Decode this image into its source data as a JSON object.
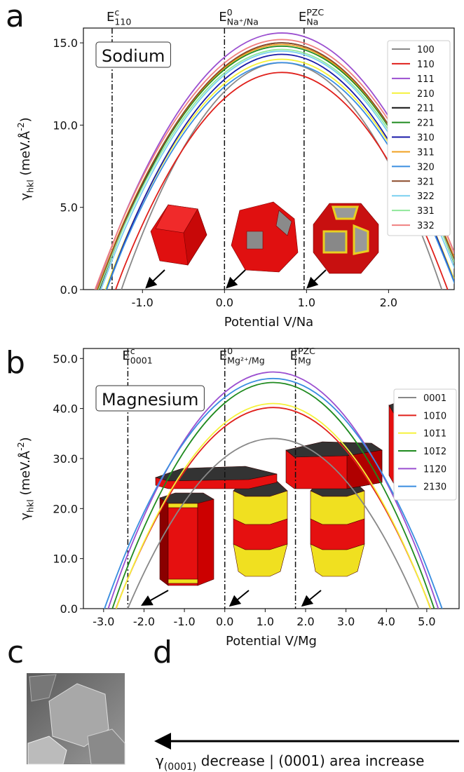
{
  "chart_data": [
    {
      "type": "line",
      "title": "Sodium",
      "xlabel": "Potential V/Na",
      "ylabel": [
        {
          "t": "γ"
        },
        {
          "sub": "hkl"
        },
        {
          "t": " (meV.Å"
        },
        {
          "sup": "-2"
        },
        {
          "t": ")"
        }
      ],
      "xlim": [
        -1.72,
        2.8
      ],
      "ylim": [
        0,
        15.9
      ],
      "xticks": [
        {
          "value": -1,
          "label": "-1.0"
        },
        {
          "value": 0,
          "label": "0.0"
        },
        {
          "value": 1,
          "label": "1.0"
        },
        {
          "value": 2,
          "label": "2.0"
        }
      ],
      "yticks": [
        {
          "value": 0,
          "label": "0.0"
        },
        {
          "value": 5,
          "label": "5.0"
        },
        {
          "value": 10,
          "label": "10.0"
        },
        {
          "value": 15,
          "label": "15.0"
        }
      ],
      "grid": false,
      "legend": "upper right",
      "vlines": [
        {
          "value": -1.37,
          "label": [
            {
              "t": "E"
            },
            {
              "sup": "c"
            },
            {
              "sub": "110"
            }
          ]
        },
        {
          "value": 0,
          "label": [
            {
              "t": "E"
            },
            {
              "sup": "0"
            },
            {
              "sub": "Na⁺/Na"
            }
          ]
        },
        {
          "value": 0.97,
          "label": [
            {
              "t": "E"
            },
            {
              "sup": "PZC"
            },
            {
              "sub": "Na"
            }
          ]
        }
      ],
      "x": [
        -1.8,
        -1.2,
        -0.6,
        0,
        0.6,
        1.2,
        1.8,
        2.4,
        3.0
      ],
      "series": [
        {
          "name": "100",
          "color": "#888888",
          "values": [
            -8.7,
            0.8,
            7.72,
            12.04,
            13.76,
            12.9,
            9.44,
            3.4,
            -5.24
          ]
        },
        {
          "name": "110",
          "color": "#e0201b",
          "values": [
            -6.8,
            1.65,
            7.79,
            11.63,
            13.17,
            12.4,
            9.33,
            3.95,
            -3.73
          ]
        },
        {
          "name": "111",
          "color": "#9b4fd0",
          "values": [
            -3.15,
            4.77,
            10.53,
            14.13,
            15.57,
            14.85,
            11.97,
            6.93,
            -0.27
          ]
        },
        {
          "name": "210",
          "color": "#f5f23a",
          "values": [
            -4.75,
            3.17,
            8.93,
            12.53,
            13.97,
            13.25,
            10.37,
            5.33,
            -1.87
          ]
        },
        {
          "name": "211",
          "color": "#111111",
          "values": [
            -3.75,
            4.17,
            9.93,
            13.53,
            14.97,
            14.25,
            11.37,
            6.33,
            -0.87
          ]
        },
        {
          "name": "221",
          "color": "#1f8a1f",
          "values": [
            -3.33,
            4.33,
            9.9,
            13.38,
            14.77,
            14.07,
            11.29,
            6.42,
            -0.54
          ]
        },
        {
          "name": "310",
          "color": "#1a1aa8",
          "values": [
            -5.08,
            3.11,
            9.06,
            12.78,
            14.27,
            13.52,
            10.55,
            5.34,
            -2.1
          ]
        },
        {
          "name": "311",
          "color": "#f0a020",
          "values": [
            -3.23,
            4.43,
            10.0,
            13.48,
            14.87,
            14.17,
            11.39,
            6.52,
            -0.44
          ]
        },
        {
          "name": "320",
          "color": "#3a8ee0",
          "values": [
            -4.95,
            2.97,
            8.73,
            12.33,
            13.77,
            13.05,
            10.17,
            5.13,
            -2.07
          ]
        },
        {
          "name": "321",
          "color": "#8b4a2a",
          "values": [
            -3.44,
            4.35,
            10.01,
            13.55,
            14.97,
            14.26,
            11.43,
            6.47,
            -0.61
          ]
        },
        {
          "name": "322",
          "color": "#7ad0f0",
          "values": [
            -3.94,
            3.85,
            9.51,
            13.05,
            14.47,
            13.76,
            10.93,
            5.97,
            -1.11
          ]
        },
        {
          "name": "331",
          "color": "#8fe89a",
          "values": [
            -3.53,
            4.13,
            9.7,
            13.18,
            14.57,
            13.87,
            11.09,
            6.22,
            -0.74
          ]
        },
        {
          "name": "332",
          "color": "#f08080",
          "values": [
            -2.93,
            4.73,
            10.3,
            13.78,
            15.17,
            14.47,
            11.69,
            6.82,
            -0.14
          ]
        }
      ]
    },
    {
      "type": "line",
      "title": "Magnesium",
      "xlabel": "Potential V/Mg",
      "ylabel": [
        {
          "t": "γ"
        },
        {
          "sub": "hkl"
        },
        {
          "t": " (meV.Å"
        },
        {
          "sup": "-2"
        },
        {
          "t": ")"
        }
      ],
      "xlim": [
        -3.5,
        5.8
      ],
      "ylim": [
        0,
        52
      ],
      "xticks": [
        {
          "value": -3,
          "label": "-3.0"
        },
        {
          "value": -2,
          "label": "-2.0"
        },
        {
          "value": -1,
          "label": "-1.0"
        },
        {
          "value": 0,
          "label": "0.0"
        },
        {
          "value": 1,
          "label": "1.0"
        },
        {
          "value": 2,
          "label": "2.0"
        },
        {
          "value": 3,
          "label": "3.0"
        },
        {
          "value": 4,
          "label": "4.0"
        },
        {
          "value": 5,
          "label": "5.0"
        }
      ],
      "yticks": [
        {
          "value": 0,
          "label": "0.0"
        },
        {
          "value": 10,
          "label": "10.0"
        },
        {
          "value": 20,
          "label": "20.0"
        },
        {
          "value": 30,
          "label": "30.0"
        },
        {
          "value": 40,
          "label": "40.0"
        },
        {
          "value": 50,
          "label": "50.0"
        }
      ],
      "grid": false,
      "legend": "upper right",
      "vlines": [
        {
          "value": -2.4,
          "label": [
            {
              "t": "E"
            },
            {
              "sup": "c"
            },
            {
              "sub": "0001"
            }
          ]
        },
        {
          "value": 0,
          "label": [
            {
              "t": "E"
            },
            {
              "sup": "0"
            },
            {
              "sub": "Mg²⁺/Mg"
            }
          ]
        },
        {
          "value": 1.75,
          "label": [
            {
              "t": "E"
            },
            {
              "sup": "PZC"
            },
            {
              "sub": "Mg"
            }
          ]
        }
      ],
      "x": [
        -3.6,
        -2.4,
        -1.2,
        0,
        1.2,
        2.4,
        3.6,
        4.8,
        6.0
      ],
      "series": [
        {
          "name": "0001",
          "color": "#888888",
          "values": [
            -26.36,
            0.04,
            18.91,
            30.23,
            34,
            30.23,
            18.91,
            0.04,
            -26.36
          ]
        },
        {
          "name": "101̄0",
          "color": "#e0201b",
          "values": [
            -20.63,
            5.99,
            24.99,
            36.4,
            40.2,
            36.4,
            24.99,
            5.99,
            -20.63
          ]
        },
        {
          "name": "101̄1",
          "color": "#f5f23a",
          "values": [
            -21.21,
            6.01,
            25.45,
            37.11,
            41,
            37.11,
            25.45,
            6.01,
            -21.21
          ]
        },
        {
          "name": "101̄2",
          "color": "#1f8a1f",
          "values": [
            -20.0,
            8.52,
            28.9,
            41.12,
            45.2,
            41.12,
            28.9,
            8.52,
            -20.0
          ]
        },
        {
          "name": "112̄0",
          "color": "#9b4fd0",
          "values": [
            -17.44,
            10.88,
            31.11,
            43.25,
            47.3,
            43.25,
            31.11,
            10.88,
            -17.44
          ]
        },
        {
          "name": "213̄0",
          "color": "#3a8ee0",
          "values": [
            -14.13,
            12.17,
            30.97,
            42.24,
            46,
            42.24,
            30.97,
            12.17,
            -14.13
          ]
        }
      ]
    }
  ],
  "panel_labels": [
    "a",
    "b",
    "c",
    "d"
  ],
  "caption": [
    {
      "t": "γ"
    },
    {
      "sub": "(0001)"
    },
    {
      "t": " decrease | (0001) area increase"
    }
  ]
}
